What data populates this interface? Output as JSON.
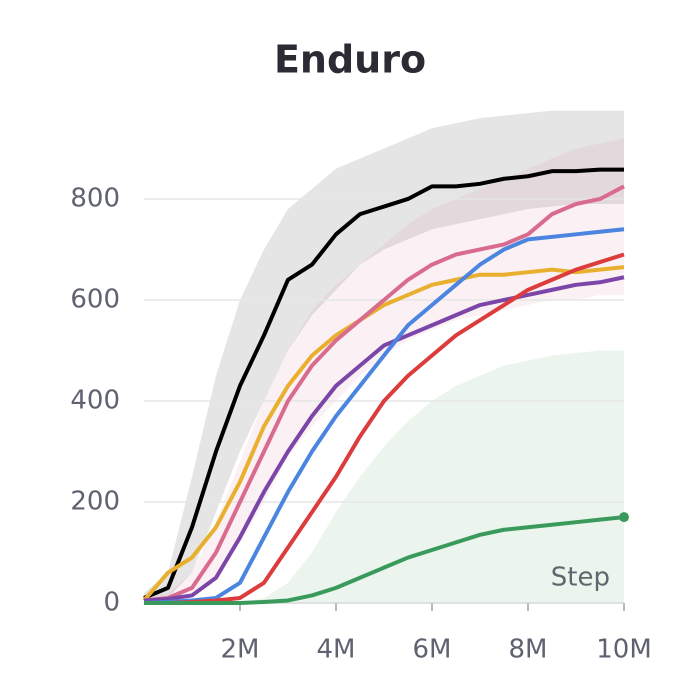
{
  "chart_data": {
    "type": "line",
    "title": "Enduro",
    "xlabel": "Step",
    "x": [
      0,
      0.5,
      1,
      1.5,
      2,
      2.5,
      3,
      3.5,
      4,
      4.5,
      5,
      5.5,
      6,
      6.5,
      7,
      7.5,
      8,
      8.5,
      9,
      9.5,
      10
    ],
    "xlim": [
      0,
      10
    ],
    "ylim": [
      0,
      990
    ],
    "xticks": [
      {
        "value": 2,
        "label": "2M"
      },
      {
        "value": 4,
        "label": "4M"
      },
      {
        "value": 6,
        "label": "6M"
      },
      {
        "value": 8,
        "label": "8M"
      },
      {
        "value": 10,
        "label": "10M"
      }
    ],
    "yticks": [
      0,
      200,
      400,
      600,
      800
    ],
    "grid": true,
    "series": [
      {
        "color": "#000000",
        "values": [
          10,
          30,
          150,
          300,
          430,
          530,
          640,
          670,
          730,
          770,
          785,
          800,
          825,
          825,
          830,
          840,
          845,
          855,
          855,
          858,
          858
        ],
        "lower": [
          0,
          10,
          60,
          180,
          300,
          400,
          500,
          570,
          620,
          670,
          700,
          720,
          740,
          750,
          760,
          770,
          780,
          785,
          790,
          790,
          790
        ],
        "upper": [
          20,
          60,
          250,
          450,
          600,
          700,
          780,
          820,
          860,
          880,
          900,
          920,
          940,
          950,
          960,
          965,
          970,
          975,
          975,
          975,
          975
        ]
      },
      {
        "color": "#e8b02e",
        "values": [
          5,
          60,
          90,
          150,
          240,
          350,
          430,
          490,
          530,
          560,
          590,
          610,
          630,
          640,
          650,
          650,
          655,
          660,
          655,
          660,
          665
        ]
      },
      {
        "color": "#d96b8f",
        "values": [
          5,
          10,
          30,
          100,
          200,
          300,
          400,
          470,
          520,
          560,
          600,
          640,
          670,
          690,
          700,
          710,
          730,
          770,
          790,
          800,
          825
        ],
        "lower": [
          0,
          0,
          10,
          50,
          120,
          200,
          290,
          350,
          400,
          450,
          490,
          520,
          540,
          560,
          570,
          580,
          590,
          600,
          600,
          610,
          610
        ],
        "upper": [
          10,
          20,
          60,
          160,
          280,
          400,
          500,
          580,
          630,
          670,
          710,
          750,
          780,
          800,
          820,
          840,
          860,
          880,
          900,
          910,
          920
        ]
      },
      {
        "color": "#7b46a8",
        "values": [
          5,
          8,
          15,
          50,
          130,
          220,
          300,
          370,
          430,
          470,
          510,
          530,
          550,
          570,
          590,
          600,
          610,
          620,
          630,
          635,
          645
        ]
      },
      {
        "color": "#4b85e0",
        "values": [
          0,
          2,
          5,
          10,
          40,
          130,
          220,
          300,
          370,
          430,
          490,
          550,
          590,
          630,
          670,
          700,
          720,
          725,
          730,
          735,
          740
        ]
      },
      {
        "color": "#dc3c3c",
        "values": [
          0,
          0,
          2,
          5,
          10,
          40,
          110,
          180,
          250,
          330,
          400,
          450,
          490,
          530,
          560,
          590,
          620,
          640,
          660,
          675,
          690
        ]
      },
      {
        "color": "#3a9a5c",
        "values": [
          0,
          0,
          0,
          0,
          0,
          2,
          5,
          15,
          30,
          50,
          70,
          90,
          105,
          120,
          135,
          145,
          150,
          155,
          160,
          165,
          170
        ],
        "lower": [
          0,
          0,
          0,
          0,
          0,
          0,
          0,
          0,
          0,
          0,
          0,
          0,
          0,
          0,
          0,
          0,
          0,
          0,
          0,
          0,
          0
        ],
        "upper": [
          0,
          0,
          0,
          0,
          0,
          10,
          40,
          100,
          180,
          250,
          310,
          360,
          400,
          430,
          450,
          470,
          480,
          490,
          495,
          500,
          500
        ]
      }
    ]
  }
}
